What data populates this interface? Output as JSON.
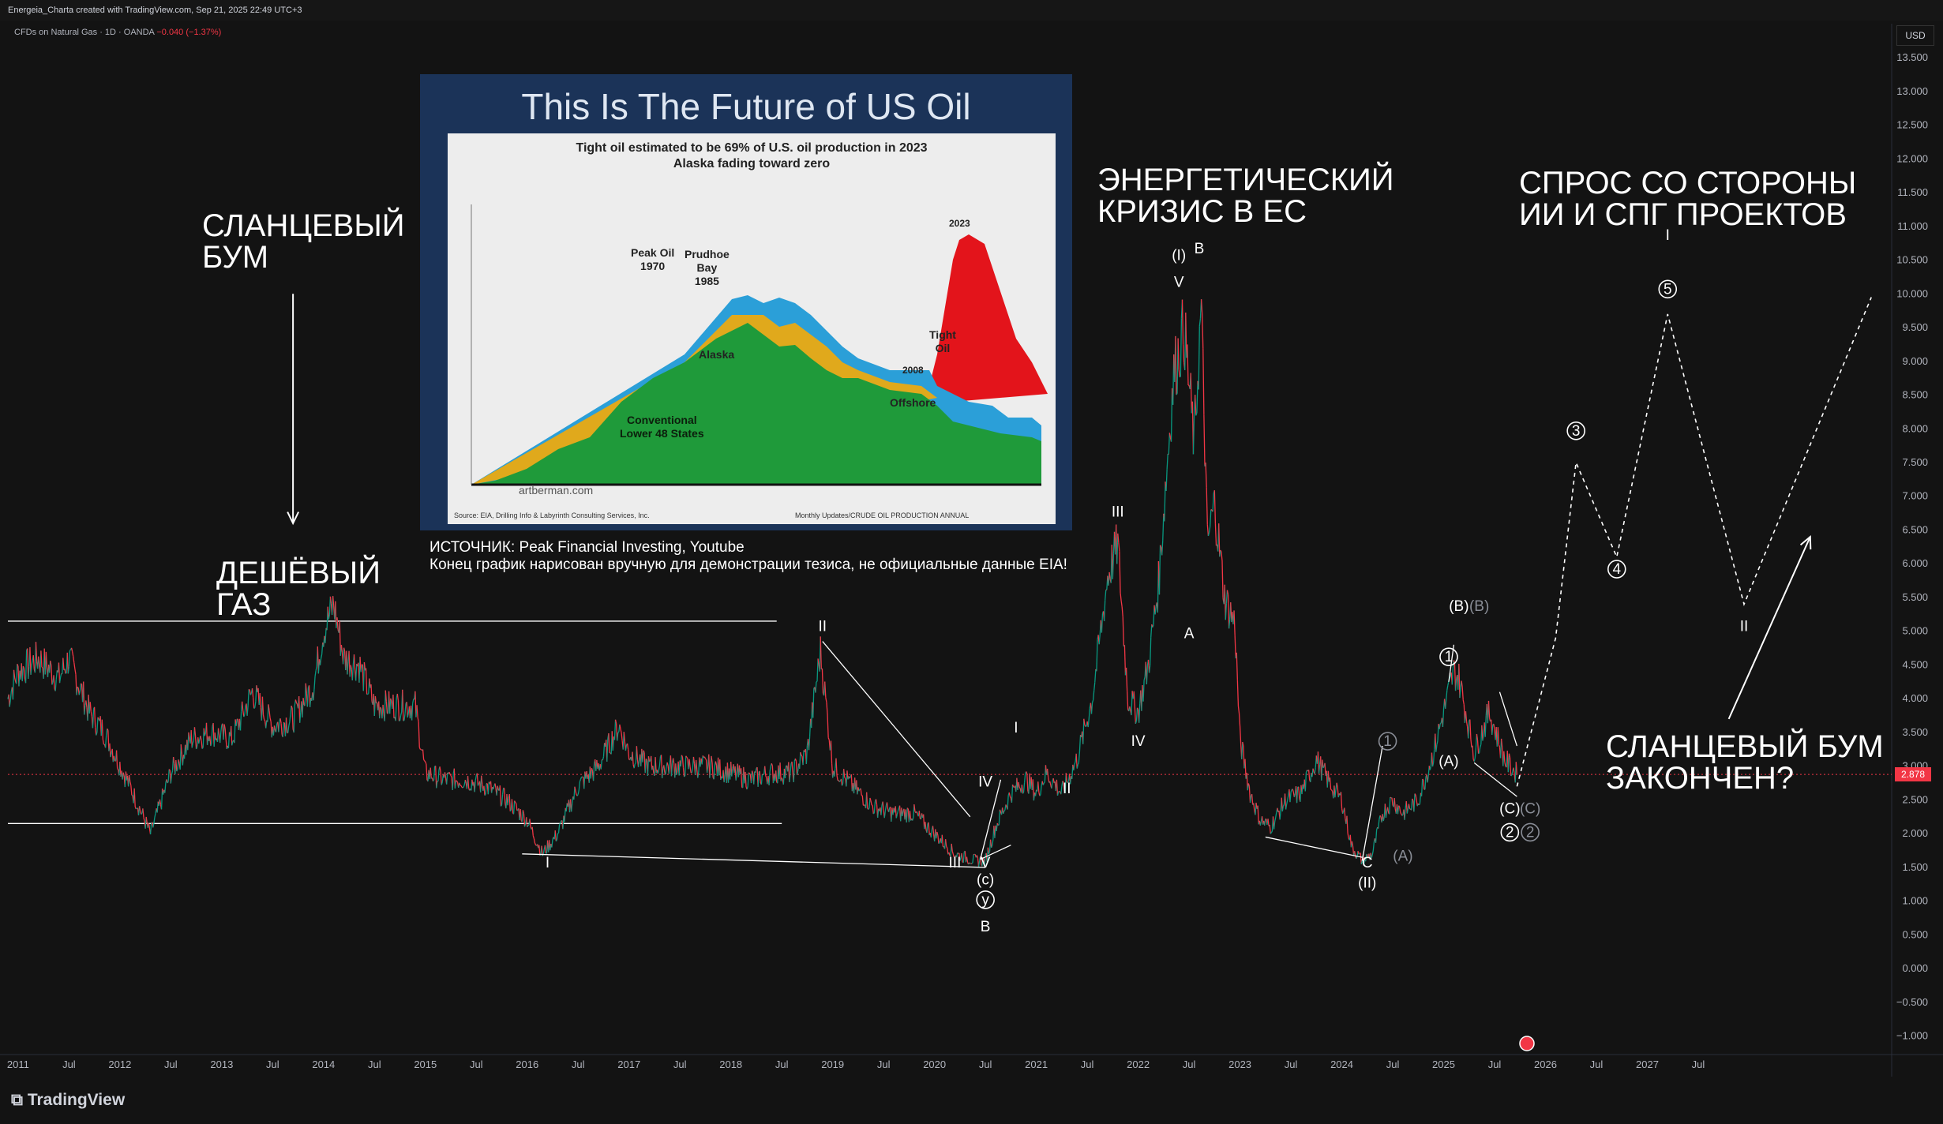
{
  "header": {
    "title": "Energeia_Charta created with TradingView.com, Sep 21, 2025 22:49 UTC+3"
  },
  "symbol": {
    "name": "CFDs on Natural Gas · 1D · OANDA",
    "change": "−0.040 (−1.37%)"
  },
  "price_axis": {
    "currency": "USD",
    "last_price": "2.878"
  },
  "footer": {
    "brand": "TradingView"
  },
  "annotations": {
    "shale_boom": "СЛАНЦЕВЫЙ\nБУМ",
    "cheap_gas": "ДЕШЁВЫЙ\nГАЗ",
    "eu_crisis": "ЭНЕРГЕТИЧЕСКИЙ\nКРИЗИС В ЕС",
    "ai_demand": "СПРОС СО СТОРОНЫ\nИИ И СПГ ПРОЕКТОВ",
    "boom_over": "СЛАНЦЕВЫЙ БУМ\nЗАКОНЧЕН?",
    "source_note": "ИСТОЧНИК: Peak Financial Investing, Youtube\nКонец график нарисован вручную для демонстрации тезиса, не официальные данные EIA!"
  },
  "inset": {
    "title": "This Is The Future of US Oil",
    "subtitle1": "Tight oil estimated to be 69% of U.S. oil production in 2023",
    "subtitle2": "Alaska fading toward zero",
    "source": "Source: EIA, Drilling Info & Labyrinth Consulting Services, Inc.",
    "source2": "Monthly Updates/CRUDE OIL PRODUCTION ANNUAL",
    "watermark": "artberman.com",
    "labels": {
      "peak1970": "Peak Oil\n1970",
      "prudhoe": "Prudhoe\nBay\n1985",
      "alaska": "Alaska",
      "y2008": "2008",
      "y2023": "2023",
      "tight": "Tight\nOil",
      "offshore": "Offshore",
      "conventional": "Conventional\nLower 48 States"
    },
    "colors": {
      "conventional": "#1f9a3a",
      "alaska": "#e0a91c",
      "offshore": "#2b9fd8",
      "tight": "#e3141b"
    }
  },
  "waves": [
    {
      "t": "I",
      "x": 2016.2,
      "y": 1.5
    },
    {
      "t": "II",
      "x": 2018.9,
      "y": 5.0
    },
    {
      "t": "III",
      "x": 2020.2,
      "y": 1.5
    },
    {
      "t": "IV",
      "x": 2020.5,
      "y": 2.7
    },
    {
      "t": "V",
      "x": 2020.5,
      "y": 1.5
    },
    {
      "t": "(c)",
      "x": 2020.5,
      "y": 1.25
    },
    {
      "t": "y",
      "x": 2020.5,
      "y": 0.95,
      "circle": true
    },
    {
      "t": "B",
      "x": 2020.5,
      "y": 0.55
    },
    {
      "t": "I",
      "x": 2020.8,
      "y": 3.5
    },
    {
      "t": "II",
      "x": 2021.3,
      "y": 2.6
    },
    {
      "t": "III",
      "x": 2021.8,
      "y": 6.7
    },
    {
      "t": "IV",
      "x": 2022.0,
      "y": 3.3
    },
    {
      "t": "(I)",
      "x": 2022.4,
      "y": 10.5
    },
    {
      "t": "V",
      "x": 2022.4,
      "y": 10.1
    },
    {
      "t": "B",
      "x": 2022.6,
      "y": 10.6
    },
    {
      "t": "A",
      "x": 2022.5,
      "y": 4.9
    },
    {
      "t": "1",
      "x": 2024.45,
      "y": 3.3,
      "circle": true,
      "grey": true
    },
    {
      "t": "C",
      "x": 2024.25,
      "y": 1.5
    },
    {
      "t": "(II)",
      "x": 2024.25,
      "y": 1.2
    },
    {
      "t": "(A)",
      "x": 2024.6,
      "y": 1.6,
      "grey": true
    },
    {
      "t": "(A)",
      "x": 2025.05,
      "y": 3.0
    },
    {
      "t": "1",
      "x": 2025.05,
      "y": 4.55,
      "circle": true
    },
    {
      "t": "(B)",
      "x": 2025.15,
      "y": 5.3
    },
    {
      "t": "(B)",
      "x": 2025.35,
      "y": 5.3,
      "grey": true
    },
    {
      "t": "(C)",
      "x": 2025.65,
      "y": 2.3
    },
    {
      "t": "(C)",
      "x": 2025.85,
      "y": 2.3,
      "grey": true
    },
    {
      "t": "2",
      "x": 2025.65,
      "y": 1.95,
      "circle": true
    },
    {
      "t": "2",
      "x": 2025.85,
      "y": 1.95,
      "circle": true,
      "grey": true
    },
    {
      "t": "3",
      "x": 2026.3,
      "y": 7.9,
      "circle": true
    },
    {
      "t": "4",
      "x": 2026.7,
      "y": 5.85,
      "circle": true
    },
    {
      "t": "I",
      "x": 2027.2,
      "y": 10.8
    },
    {
      "t": "5",
      "x": 2027.2,
      "y": 10.0,
      "circle": true
    },
    {
      "t": "II",
      "x": 2027.95,
      "y": 5.0
    }
  ],
  "chart_data": {
    "type": "line",
    "title": "CFDs on Natural Gas · 1D · OANDA",
    "xlim": [
      2010.9,
      2029.4
    ],
    "ylim": [
      -1.25,
      13.7
    ],
    "x_ticks": [
      "2011",
      "Jul",
      "2012",
      "Jul",
      "2013",
      "Jul",
      "2014",
      "Jul",
      "2015",
      "Jul",
      "2016",
      "Jul",
      "2017",
      "Jul",
      "2018",
      "Jul",
      "2019",
      "Jul",
      "2020",
      "Jul",
      "2021",
      "Jul",
      "2022",
      "Jul",
      "2023",
      "Jul",
      "2024",
      "Jul",
      "2025",
      "Jul",
      "2026",
      "Jul",
      "2027",
      "Jul"
    ],
    "x_tick_pos": [
      2011,
      2011.5,
      2012,
      2012.5,
      2013,
      2013.5,
      2014,
      2014.5,
      2015,
      2015.5,
      2016,
      2016.5,
      2017,
      2017.5,
      2018,
      2018.5,
      2019,
      2019.5,
      2020,
      2020.5,
      2021,
      2021.5,
      2022,
      2022.5,
      2023,
      2023.5,
      2024,
      2024.5,
      2025,
      2025.5,
      2026,
      2026.5,
      2027,
      2027.5
    ],
    "y_ticks": [
      "−1.000",
      "−0.500",
      "0.000",
      "0.500",
      "1.000",
      "1.500",
      "2.000",
      "2.500",
      "3.000",
      "3.500",
      "4.000",
      "4.500",
      "5.000",
      "5.500",
      "6.000",
      "6.500",
      "7.000",
      "7.500",
      "8.000",
      "8.500",
      "9.000",
      "9.500",
      "10.000",
      "10.500",
      "11.000",
      "11.500",
      "12.000",
      "12.500",
      "13.000",
      "13.500"
    ],
    "y_tick_vals": [
      -1,
      -0.5,
      0,
      0.5,
      1,
      1.5,
      2,
      2.5,
      3,
      3.5,
      4,
      4.5,
      5,
      5.5,
      6,
      6.5,
      7,
      7.5,
      8,
      8.5,
      9,
      9.5,
      10,
      10.5,
      11,
      11.5,
      12,
      12.5,
      13,
      13.5
    ],
    "series": [
      {
        "x": [
          2010.9,
          2011.0,
          2011.2,
          2011.4,
          2011.5,
          2011.7,
          2011.85,
          2012.1,
          2012.3,
          2012.5,
          2012.7,
          2012.9,
          2013.1,
          2013.3,
          2013.5,
          2013.7,
          2013.9,
          2014.0,
          2014.1,
          2014.2,
          2014.35,
          2014.5,
          2014.7,
          2014.9,
          2015.0,
          2015.2,
          2015.4,
          2015.6,
          2015.8,
          2016.0,
          2016.15,
          2016.3,
          2016.5,
          2016.7,
          2016.9,
          2017.0,
          2017.2,
          2017.4,
          2017.6,
          2017.8,
          2018.0,
          2018.2,
          2018.4,
          2018.6,
          2018.75,
          2018.88,
          2019.0,
          2019.2,
          2019.4,
          2019.6,
          2019.8,
          2020.0,
          2020.2,
          2020.4,
          2020.5,
          2020.6,
          2020.75,
          2020.9,
          2021.0,
          2021.1,
          2021.25,
          2021.4,
          2021.55,
          2021.7,
          2021.8,
          2021.9,
          2022.0,
          2022.1,
          2022.2,
          2022.3,
          2022.35,
          2022.45,
          2022.55,
          2022.62,
          2022.68,
          2022.75,
          2022.85,
          2022.95,
          2023.0,
          2023.1,
          2023.2,
          2023.3,
          2023.45,
          2023.6,
          2023.75,
          2023.9,
          2024.0,
          2024.1,
          2024.2,
          2024.3,
          2024.4,
          2024.5,
          2024.6,
          2024.75,
          2024.9,
          2025.0,
          2025.1,
          2025.15,
          2025.3,
          2025.45,
          2025.6,
          2025.72
        ],
        "values": [
          4.0,
          4.4,
          4.6,
          4.3,
          4.6,
          3.8,
          3.5,
          2.7,
          2.0,
          2.9,
          3.4,
          3.5,
          3.4,
          4.1,
          3.6,
          3.7,
          4.2,
          5.0,
          5.4,
          4.6,
          4.5,
          3.9,
          3.9,
          3.9,
          2.9,
          2.8,
          2.8,
          2.7,
          2.5,
          2.2,
          1.7,
          2.0,
          2.7,
          3.0,
          3.6,
          3.2,
          3.0,
          3.0,
          3.0,
          3.0,
          2.9,
          2.8,
          2.9,
          2.9,
          3.2,
          4.7,
          3.0,
          2.7,
          2.4,
          2.3,
          2.3,
          2.0,
          1.7,
          1.6,
          1.6,
          2.1,
          2.6,
          2.8,
          2.6,
          2.9,
          2.6,
          3.1,
          4.0,
          5.8,
          6.3,
          4.0,
          3.8,
          4.5,
          5.7,
          7.8,
          8.8,
          9.5,
          7.8,
          9.8,
          6.3,
          6.9,
          5.5,
          5.1,
          3.4,
          2.6,
          2.2,
          2.1,
          2.5,
          2.6,
          3.1,
          2.7,
          2.5,
          1.8,
          1.6,
          1.7,
          2.3,
          2.5,
          2.3,
          2.5,
          3.2,
          3.8,
          4.4,
          4.3,
          3.2,
          3.8,
          3.1,
          2.878
        ]
      }
    ],
    "hlines": [
      {
        "y": 5.15,
        "x": [
          2010.9,
          2018.45
        ]
      },
      {
        "y": 2.15,
        "x": [
          2010.9,
          2018.5
        ]
      }
    ],
    "trendlines": [
      [
        [
          2015.95,
          1.7
        ],
        [
          2020.5,
          1.5
        ]
      ],
      [
        [
          2018.9,
          4.85
        ],
        [
          2020.35,
          2.25
        ]
      ],
      [
        [
          2020.45,
          1.62
        ],
        [
          2020.75,
          1.83
        ]
      ],
      [
        [
          2020.45,
          1.62
        ],
        [
          2020.65,
          2.8
        ]
      ],
      [
        [
          2023.25,
          1.95
        ],
        [
          2024.2,
          1.65
        ]
      ],
      [
        [
          2024.2,
          1.6
        ],
        [
          2024.4,
          3.3
        ]
      ],
      [
        [
          2025.3,
          3.05
        ],
        [
          2025.72,
          2.55
        ]
      ],
      [
        [
          2025.55,
          4.1
        ],
        [
          2025.72,
          3.3
        ]
      ],
      [
        [
          2025.05,
          4.25
        ],
        [
          2025.1,
          4.8
        ]
      ]
    ],
    "projection": {
      "x": [
        2025.72,
        2026.1,
        2026.3,
        2026.7,
        2027.2,
        2027.95,
        2029.2
      ],
      "values": [
        2.7,
        4.9,
        7.5,
        6.1,
        9.7,
        5.4,
        9.95
      ]
    },
    "arrows": [
      [
        [
          2013.7,
          10.0
        ],
        [
          2013.7,
          6.6
        ]
      ],
      [
        [
          2027.8,
          3.7
        ],
        [
          2028.6,
          6.4
        ]
      ]
    ],
    "colors": {
      "candle_up": "#089981",
      "candle_down": "#f23645",
      "last_line": "#f23645"
    }
  }
}
